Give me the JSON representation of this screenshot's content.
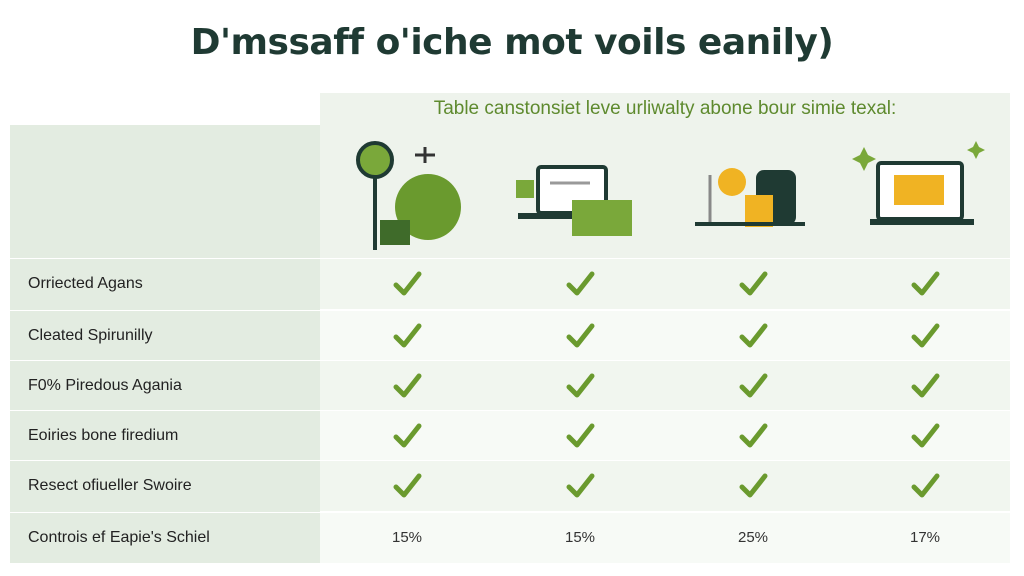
{
  "header": {
    "title": "D'mssaff o'iche mot voils eanily)",
    "subtitle": "Table canstonsiet leve urliwalty abone bour simie texal:"
  },
  "table": {
    "rows": [
      {
        "label": "Orriected Agans",
        "cells": [
          true,
          true,
          true,
          true
        ]
      },
      {
        "label": "Cleated Spirunilly",
        "cells": [
          true,
          true,
          true,
          true
        ]
      },
      {
        "label": "F0% Piredous Agania",
        "cells": [
          true,
          true,
          true,
          true
        ]
      },
      {
        "label": "Eoiries bone firedium",
        "cells": [
          true,
          true,
          true,
          true
        ]
      },
      {
        "label": "Resect ofiueller Swoire",
        "cells": [
          true,
          true,
          true,
          true
        ]
      },
      {
        "label": "Controis ef Eapie's Schiel",
        "cells": [
          "15%",
          "15%",
          "25%",
          "17%"
        ]
      }
    ]
  }
}
